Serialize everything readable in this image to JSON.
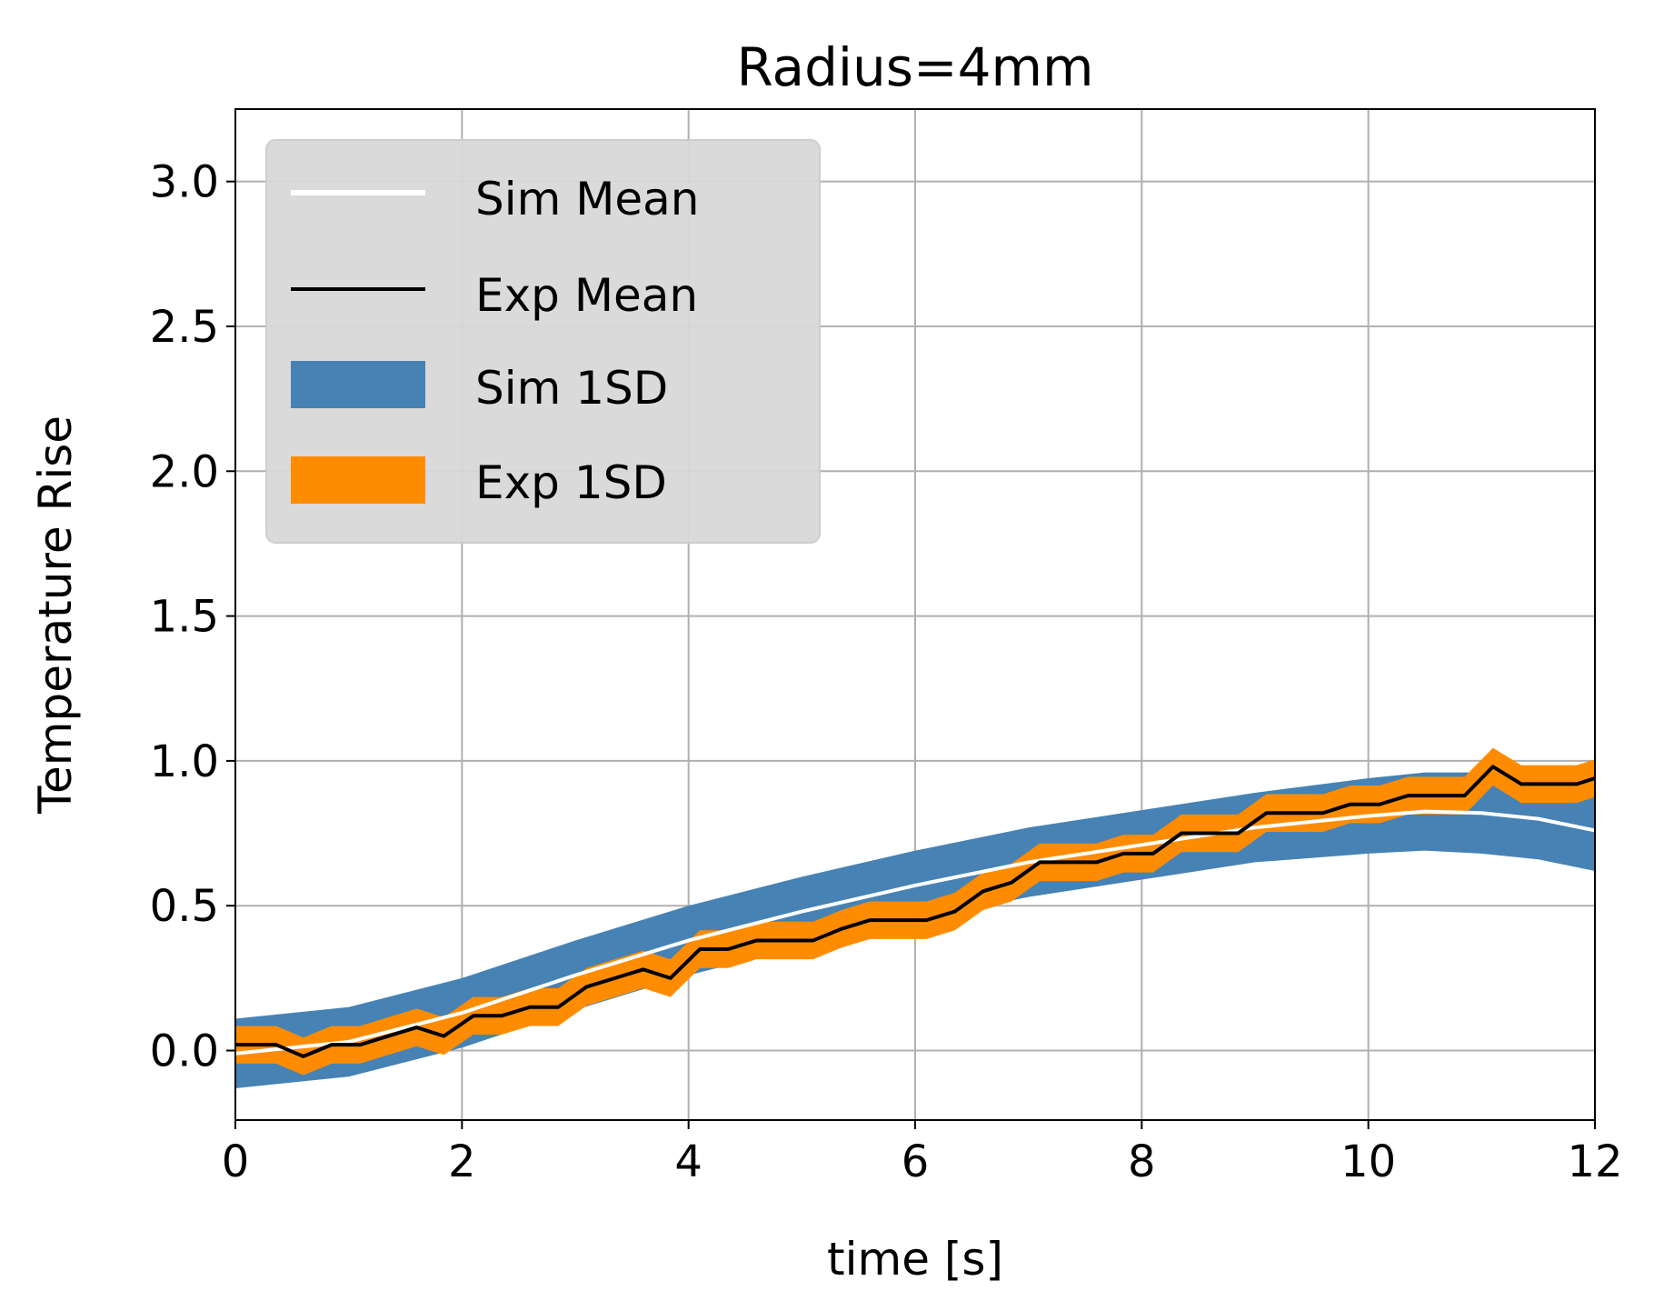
{
  "chart_data": {
    "type": "line",
    "title": "Radius=4mm",
    "xlabel": "time [s]",
    "ylabel": "Temperature Rise",
    "xlim": [
      0,
      12
    ],
    "ylim": [
      -0.24,
      3.25
    ],
    "xticks": [
      0,
      2,
      4,
      6,
      8,
      10,
      12
    ],
    "yticks": [
      0.0,
      0.5,
      1.0,
      1.5,
      2.0,
      2.5,
      3.0
    ],
    "xtick_labels": [
      "0",
      "2",
      "4",
      "6",
      "8",
      "10",
      "12"
    ],
    "ytick_labels": [
      "0.0",
      "0.5",
      "1.0",
      "1.5",
      "2.0",
      "2.5",
      "3.0"
    ],
    "grid": true,
    "legend_position": "top-left",
    "legend": [
      "Sim Mean",
      "Exp Mean",
      "Sim 1SD",
      "Exp 1SD"
    ],
    "colors": {
      "sim_mean": "#ffffff",
      "exp_mean": "#000000",
      "sim_band": "#4682b4",
      "exp_band": "#ff8c00",
      "grid": "#b0b0b0",
      "legend_bg": "#d9d9d9"
    },
    "sim": {
      "x": [
        0,
        1,
        2,
        3,
        4,
        5,
        6,
        7,
        8,
        9,
        10,
        10.5,
        11,
        11.5,
        12
      ],
      "mean": [
        -0.01,
        0.03,
        0.13,
        0.26,
        0.38,
        0.48,
        0.57,
        0.65,
        0.71,
        0.77,
        0.81,
        0.825,
        0.82,
        0.8,
        0.76
      ],
      "sd": [
        0.12,
        0.12,
        0.12,
        0.12,
        0.12,
        0.12,
        0.12,
        0.12,
        0.12,
        0.12,
        0.13,
        0.135,
        0.14,
        0.14,
        0.14
      ]
    },
    "exp": {
      "x": [
        0,
        0.36,
        0.6,
        0.85,
        1.1,
        1.35,
        1.6,
        1.84,
        2.1,
        2.35,
        2.6,
        2.85,
        3.1,
        3.35,
        3.6,
        3.84,
        4.1,
        4.35,
        4.6,
        4.85,
        5.1,
        5.35,
        5.6,
        5.84,
        6.1,
        6.35,
        6.6,
        6.85,
        7.1,
        7.35,
        7.6,
        7.84,
        8.1,
        8.35,
        8.6,
        8.85,
        9.1,
        9.35,
        9.6,
        9.84,
        10.1,
        10.35,
        10.6,
        10.85,
        11.1,
        11.35,
        11.6,
        11.84,
        12.0
      ],
      "mean": [
        0.02,
        0.02,
        -0.02,
        0.02,
        0.02,
        0.05,
        0.08,
        0.05,
        0.12,
        0.12,
        0.15,
        0.15,
        0.22,
        0.25,
        0.28,
        0.25,
        0.35,
        0.35,
        0.38,
        0.38,
        0.38,
        0.42,
        0.45,
        0.45,
        0.45,
        0.48,
        0.55,
        0.58,
        0.65,
        0.65,
        0.65,
        0.68,
        0.68,
        0.75,
        0.75,
        0.75,
        0.82,
        0.82,
        0.82,
        0.85,
        0.85,
        0.88,
        0.88,
        0.88,
        0.98,
        0.92,
        0.92,
        0.92,
        0.94
      ],
      "sd": 0.065
    }
  }
}
